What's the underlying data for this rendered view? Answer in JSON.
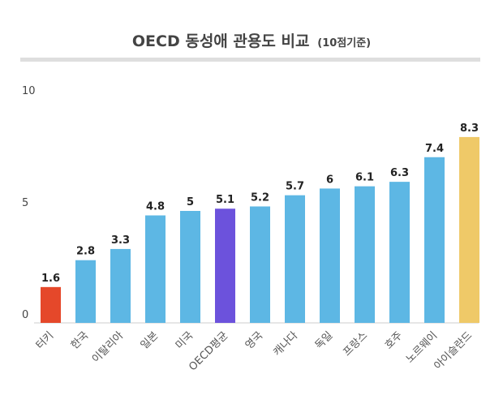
{
  "chart_data": {
    "type": "bar",
    "title": "OECD 동성애 관용도 비교",
    "subtitle": "(10점기준)",
    "categories": [
      "터키",
      "한국",
      "이탈리아",
      "일본",
      "미국",
      "OECD평균",
      "영국",
      "캐나다",
      "독일",
      "프랑스",
      "호주",
      "노르웨이",
      "아이슬란드"
    ],
    "values": [
      1.6,
      2.8,
      3.3,
      4.8,
      5,
      5.1,
      5.2,
      5.7,
      6,
      6.1,
      6.3,
      7.4,
      8.3
    ],
    "colors": [
      "#e5482a",
      "#5db7e4",
      "#5db7e4",
      "#5db7e4",
      "#5db7e4",
      "#6c52dc",
      "#5db7e4",
      "#5db7e4",
      "#5db7e4",
      "#5db7e4",
      "#5db7e4",
      "#5db7e4",
      "#efc968"
    ],
    "ylim": [
      0,
      10
    ],
    "yticks": [
      0,
      5,
      10
    ],
    "grid": false
  }
}
